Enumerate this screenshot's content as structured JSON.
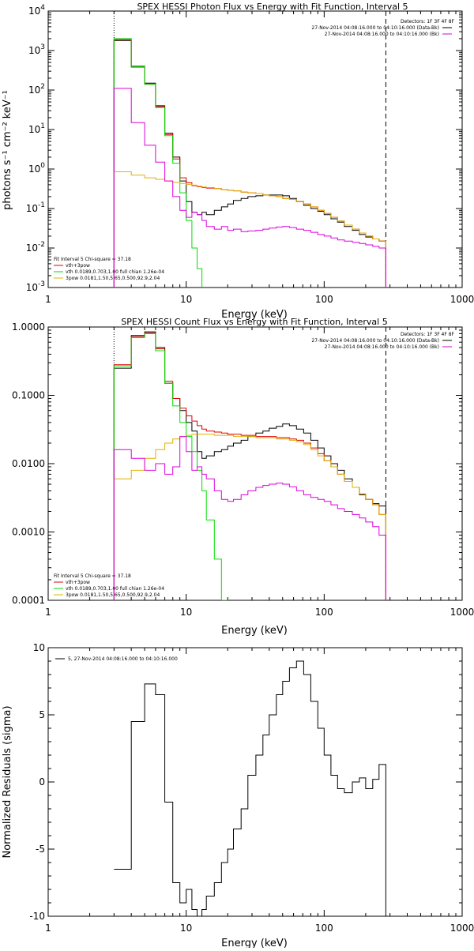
{
  "chart_data": [
    {
      "type": "line",
      "title": "SPEX HESSI Photon Flux vs Energy with Fit Function, Interval 5",
      "xlabel": "Energy (keV)",
      "ylabel": "photons s⁻¹ cm⁻² keV⁻¹",
      "xscale": "log",
      "yscale": "log",
      "xlim": [
        1,
        1000
      ],
      "ylim": [
        0.001,
        10000
      ],
      "xtick_labels": [
        "1",
        "10",
        "100",
        "1000"
      ],
      "ytick_labels": [
        "10-3",
        "10-2",
        "10-1",
        "100",
        "101",
        "102",
        "103",
        "104"
      ],
      "vlines": [
        {
          "x": 3,
          "style": "dotted"
        },
        {
          "x": 280,
          "style": "dashed"
        }
      ],
      "legend_top_right": [
        "Detectors: 1F 3F 4F 8F",
        "27-Nov-2014 04:08:16.000 to 04:10:16.000 (Data-Bk)",
        "27-Nov-2014 04:08:16.000 to 04:10:16.000 (Bk)"
      ],
      "legend_bottom_left": [
        "Fit Interval 5   Chi-square = 37.18",
        "vth+3pow",
        "vth 0.0189,0.703,1.00  full chian 1.26e-04",
        "3pow 0.0181,1.50,5.65,0.500,92.9,2.04"
      ],
      "series": [
        {
          "name": "Data-Bk",
          "color": "#000000",
          "edges": [
            3,
            4,
            5,
            6,
            7,
            8,
            9,
            10,
            11,
            12,
            13,
            14,
            16,
            18,
            20,
            22,
            25,
            28,
            32,
            36,
            40,
            45,
            50,
            56,
            63,
            71,
            80,
            90,
            100,
            112,
            125,
            140,
            160,
            180,
            200,
            225,
            250,
            280
          ],
          "values": [
            1800,
            400,
            150,
            40,
            8,
            2,
            0.5,
            0.15,
            0.08,
            0.07,
            0.08,
            0.07,
            0.09,
            0.11,
            0.13,
            0.16,
            0.18,
            0.2,
            0.21,
            0.22,
            0.22,
            0.22,
            0.21,
            0.18,
            0.15,
            0.12,
            0.1,
            0.085,
            0.07,
            0.055,
            0.045,
            0.035,
            0.028,
            0.022,
            0.019,
            0.017,
            0.015
          ]
        },
        {
          "name": "vth+3pow",
          "color": "#e00000",
          "edges": [
            3,
            4,
            5,
            6,
            7,
            8,
            9,
            10,
            11,
            12,
            13,
            14,
            16,
            18,
            20,
            22,
            25,
            28,
            32,
            36,
            40,
            45,
            50,
            56,
            63,
            71,
            80,
            90,
            100,
            112,
            125,
            140,
            160,
            180,
            200,
            225,
            250,
            280
          ],
          "values": [
            1900,
            380,
            145,
            38,
            7.5,
            1.8,
            0.6,
            0.45,
            0.38,
            0.36,
            0.34,
            0.33,
            0.32,
            0.3,
            0.29,
            0.28,
            0.26,
            0.25,
            0.24,
            0.22,
            0.21,
            0.2,
            0.18,
            0.17,
            0.15,
            0.13,
            0.11,
            0.09,
            0.075,
            0.06,
            0.048,
            0.038,
            0.03,
            0.024,
            0.02,
            0.017,
            0.015
          ]
        },
        {
          "name": "vth",
          "color": "#00dd00",
          "edges": [
            3,
            4,
            5,
            6,
            7,
            8,
            9,
            10,
            11,
            12,
            13
          ],
          "values": [
            2000,
            390,
            140,
            36,
            7,
            1.4,
            0.25,
            0.05,
            0.01,
            0.003
          ]
        },
        {
          "name": "3pow",
          "color": "#e0b000",
          "edges": [
            3,
            4,
            5,
            6,
            7,
            8,
            9,
            10,
            11,
            12,
            13,
            14,
            16,
            18,
            20,
            22,
            25,
            28,
            32,
            36,
            40,
            45,
            50,
            56,
            63,
            71,
            80,
            90,
            100,
            112,
            125,
            140,
            160,
            180,
            200,
            225,
            250,
            280
          ],
          "values": [
            0.85,
            0.7,
            0.6,
            0.55,
            0.5,
            0.46,
            0.43,
            0.41,
            0.39,
            0.37,
            0.35,
            0.34,
            0.32,
            0.3,
            0.29,
            0.28,
            0.26,
            0.25,
            0.24,
            0.22,
            0.21,
            0.2,
            0.18,
            0.17,
            0.15,
            0.13,
            0.11,
            0.09,
            0.075,
            0.06,
            0.048,
            0.038,
            0.03,
            0.024,
            0.02,
            0.017,
            0.015
          ]
        },
        {
          "name": "Bk",
          "color": "#dd00dd",
          "edges": [
            3,
            4,
            5,
            6,
            7,
            8,
            9,
            10,
            11,
            12,
            13,
            14,
            16,
            18,
            20,
            22,
            25,
            28,
            32,
            36,
            40,
            45,
            50,
            56,
            63,
            71,
            80,
            90,
            100,
            112,
            125,
            140,
            160,
            180,
            200,
            225,
            250,
            280
          ],
          "values": [
            110,
            15,
            4,
            1.5,
            0.5,
            0.2,
            0.09,
            0.06,
            0.08,
            0.07,
            0.05,
            0.035,
            0.03,
            0.035,
            0.028,
            0.03,
            0.026,
            0.027,
            0.028,
            0.03,
            0.032,
            0.034,
            0.035,
            0.033,
            0.03,
            0.028,
            0.025,
            0.022,
            0.02,
            0.018,
            0.016,
            0.015,
            0.014,
            0.013,
            0.012,
            0.011,
            0.01
          ]
        }
      ]
    },
    {
      "type": "line",
      "title": "SPEX HESSI Count Flux vs Energy with Fit Function, Interval 5",
      "xlabel": "Energy (keV)",
      "ylabel": "",
      "xscale": "log",
      "yscale": "log",
      "xlim": [
        1,
        1000
      ],
      "ylim": [
        0.0001,
        1
      ],
      "xtick_labels": [
        "1",
        "10",
        "100",
        "1000"
      ],
      "ytick_labels": [
        "0.0001",
        "0.0010",
        "0.0100",
        "0.1000",
        "1.0000"
      ],
      "vlines": [
        {
          "x": 3,
          "style": "dotted"
        },
        {
          "x": 280,
          "style": "dashed"
        }
      ],
      "legend_top_right": [
        "Detectors: 1F 3F 4F 8F",
        "27-Nov-2014 04:08:16.000 to 04:10:16.000 (Data-Bk)",
        "27-Nov-2014 04:08:16.000 to 04:10:16.000 (Bk)"
      ],
      "legend_bottom_left": [
        "Fit Interval 5   Chi-square = 37.18",
        "vth+3pow",
        "vth 0.0189,0.703,1.00  full chian 1.26e-04",
        "3pow 0.0181,1.50,5.65,0.500,92.9,2.04"
      ],
      "series": [
        {
          "name": "Data-Bk",
          "color": "#000000",
          "edges": [
            3,
            4,
            5,
            6,
            7,
            8,
            9,
            10,
            11,
            12,
            13,
            14,
            16,
            18,
            20,
            22,
            25,
            28,
            32,
            36,
            40,
            45,
            50,
            56,
            63,
            71,
            80,
            90,
            100,
            112,
            125,
            140,
            160,
            180,
            200,
            225,
            250,
            280
          ],
          "values": [
            0.25,
            0.75,
            0.85,
            0.5,
            0.15,
            0.09,
            0.06,
            0.04,
            0.03,
            0.015,
            0.012,
            0.013,
            0.015,
            0.016,
            0.018,
            0.02,
            0.022,
            0.025,
            0.028,
            0.03,
            0.033,
            0.035,
            0.038,
            0.036,
            0.032,
            0.028,
            0.022,
            0.017,
            0.013,
            0.01,
            0.008,
            0.006,
            0.0045,
            0.0035,
            0.003,
            0.0026,
            0.0024
          ]
        },
        {
          "name": "vth+3pow",
          "color": "#e00000",
          "edges": [
            3,
            4,
            5,
            6,
            7,
            8,
            9,
            10,
            11,
            12,
            13,
            14,
            16,
            18,
            20,
            22,
            25,
            28,
            32,
            36,
            40,
            45,
            50,
            56,
            63,
            71,
            80,
            90,
            100,
            112,
            125,
            140,
            160,
            180,
            200,
            225,
            250,
            280
          ],
          "values": [
            0.28,
            0.72,
            0.82,
            0.48,
            0.16,
            0.09,
            0.065,
            0.05,
            0.042,
            0.036,
            0.032,
            0.03,
            0.029,
            0.028,
            0.027,
            0.027,
            0.026,
            0.026,
            0.025,
            0.025,
            0.025,
            0.024,
            0.024,
            0.023,
            0.022,
            0.02,
            0.017,
            0.014,
            0.011,
            0.009,
            0.007,
            0.0055,
            0.0045,
            0.0036,
            0.003,
            0.0025,
            0.0018
          ]
        },
        {
          "name": "vth",
          "color": "#00dd00",
          "edges": [
            3,
            4,
            5,
            6,
            7,
            8,
            9,
            10,
            11,
            12,
            13,
            14,
            16,
            18,
            20
          ],
          "values": [
            0.27,
            0.7,
            0.8,
            0.45,
            0.15,
            0.07,
            0.04,
            0.025,
            0.015,
            0.008,
            0.004,
            0.0015,
            0.0004,
            0.0001
          ]
        },
        {
          "name": "3pow",
          "color": "#e0b000",
          "edges": [
            3,
            4,
            5,
            6,
            7,
            8,
            9,
            10,
            11,
            12,
            13,
            14,
            16,
            18,
            20,
            22,
            25,
            28,
            32,
            36,
            40,
            45,
            50,
            56,
            63,
            71,
            80,
            90,
            100,
            112,
            125,
            140,
            160,
            180,
            200,
            225,
            250,
            280
          ],
          "values": [
            0.006,
            0.008,
            0.012,
            0.016,
            0.02,
            0.023,
            0.025,
            0.026,
            0.027,
            0.027,
            0.027,
            0.027,
            0.026,
            0.026,
            0.026,
            0.025,
            0.025,
            0.025,
            0.024,
            0.024,
            0.024,
            0.023,
            0.023,
            0.022,
            0.021,
            0.019,
            0.016,
            0.013,
            0.011,
            0.009,
            0.007,
            0.0055,
            0.0045,
            0.0036,
            0.003,
            0.0025,
            0.0018
          ]
        },
        {
          "name": "Bk",
          "color": "#dd00dd",
          "edges": [
            3,
            4,
            5,
            6,
            7,
            8,
            9,
            10,
            11,
            12,
            13,
            14,
            16,
            18,
            20,
            22,
            25,
            28,
            32,
            36,
            40,
            45,
            50,
            56,
            63,
            71,
            80,
            90,
            100,
            112,
            125,
            140,
            160,
            180,
            200,
            225,
            250,
            280
          ],
          "values": [
            0.016,
            0.012,
            0.008,
            0.01,
            0.007,
            0.009,
            0.025,
            0.015,
            0.008,
            0.009,
            0.007,
            0.006,
            0.004,
            0.003,
            0.0028,
            0.003,
            0.0035,
            0.004,
            0.0045,
            0.0048,
            0.005,
            0.0052,
            0.005,
            0.0046,
            0.004,
            0.0035,
            0.0032,
            0.003,
            0.0028,
            0.0025,
            0.0022,
            0.002,
            0.0018,
            0.0016,
            0.0014,
            0.0012,
            0.0009
          ]
        }
      ]
    },
    {
      "type": "line",
      "title": "",
      "xlabel": "Energy (keV)",
      "ylabel": "Normalized Residuals (sigma)",
      "xscale": "log",
      "yscale": "linear",
      "xlim": [
        1,
        1000
      ],
      "ylim": [
        -10,
        10
      ],
      "xtick_labels": [
        "1",
        "10",
        "100",
        "1000"
      ],
      "ytick_labels": [
        "-10",
        "-5",
        "0",
        "5",
        "10"
      ],
      "legend_top_left": [
        "5, 27-Nov-2014 04:08:16.000 to 04:10:16.000"
      ],
      "series": [
        {
          "name": "5, 27-Nov-2014 04:08:16.000 to 04:10:16.000",
          "color": "#000000",
          "edges": [
            3,
            4,
            5,
            6,
            7,
            8,
            9,
            10,
            11,
            12,
            13,
            14,
            16,
            18,
            20,
            22,
            25,
            28,
            32,
            36,
            40,
            45,
            50,
            56,
            63,
            71,
            80,
            90,
            100,
            112,
            125,
            140,
            160,
            180,
            200,
            225,
            250,
            280
          ],
          "values": [
            -6.5,
            4.5,
            7.3,
            6.5,
            -1.5,
            -7.5,
            -9.0,
            -8.0,
            -9.5,
            -10.0,
            -9.5,
            -8.5,
            -7.5,
            -6.0,
            -5.0,
            -3.5,
            -2.0,
            0.5,
            2.0,
            3.5,
            5.0,
            6.5,
            7.5,
            8.5,
            9.0,
            8.0,
            6.0,
            4.0,
            2.0,
            0.5,
            -0.5,
            -0.8,
            0.0,
            0.3,
            -0.5,
            0.2,
            1.3
          ]
        }
      ]
    }
  ]
}
